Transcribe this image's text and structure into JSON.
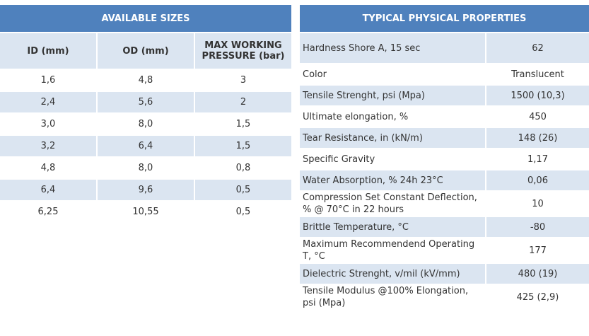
{
  "sizes": {
    "title": "AVAILABLE SIZES",
    "columns": [
      "ID (mm)",
      "OD (mm)",
      "MAX WORKING PRESSURE (bar)"
    ],
    "rows": [
      [
        "1,6",
        "4,8",
        "3"
      ],
      [
        "2,4",
        "5,6",
        "2"
      ],
      [
        "3,0",
        "8,0",
        "1,5"
      ],
      [
        "3,2",
        "6,4",
        "1,5"
      ],
      [
        "4,8",
        "8,0",
        "0,8"
      ],
      [
        "6,4",
        "9,6",
        "0,5"
      ],
      [
        "6,25",
        "10,55",
        "0,5"
      ]
    ]
  },
  "properties": {
    "title": "TYPICAL PHYSICAL PROPERTIES",
    "rows": [
      [
        "Hardness Shore A, 15 sec",
        "62"
      ],
      [
        "Color",
        "Translucent"
      ],
      [
        "Tensile Strenght, psi (Mpa)",
        "1500 (10,3)"
      ],
      [
        "Ultimate elongation, %",
        "450"
      ],
      [
        "Tear Resistance, in (kN/m)",
        "148 (26)"
      ],
      [
        "Specific Gravity",
        "1,17"
      ],
      [
        "Water Absorption, % 24h 23°C",
        "0,06"
      ],
      [
        "Compression Set Constant Deflection, % @ 70°C in 22 hours",
        "10"
      ],
      [
        "Brittle Temperature, °C",
        "-80"
      ],
      [
        "Maximum Recommendend Operating T, °C",
        "177"
      ],
      [
        "Dielectric Strenght, v/mil (kV/mm)",
        "480 (19)"
      ],
      [
        "Tensile Modulus @100% Elongation, psi (Mpa)",
        "425 (2,9)"
      ]
    ]
  }
}
